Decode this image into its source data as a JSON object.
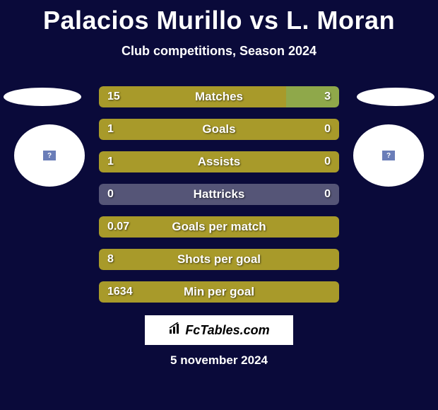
{
  "title": "Palacios Murillo vs L. Moran",
  "subtitle": "Club competitions, Season 2024",
  "date": "5 november 2024",
  "logo_text": "FcTables.com",
  "badge_left_color": "#6a7db8",
  "badge_right_color": "#6a7db8",
  "colors": {
    "background": "#0a0a3a",
    "bar_primary": "#a89a2a",
    "bar_secondary": "#8fa84a",
    "text": "#ffffff"
  },
  "stats": [
    {
      "label": "Matches",
      "left_val": "15",
      "right_val": "3",
      "left_w": 78,
      "right_w": 22,
      "left_color": "#a89a2a",
      "right_color": "#8fa84a"
    },
    {
      "label": "Goals",
      "left_val": "1",
      "right_val": "0",
      "left_w": 100,
      "right_w": 0,
      "left_color": "#a89a2a",
      "right_color": "#8fa84a"
    },
    {
      "label": "Assists",
      "left_val": "1",
      "right_val": "0",
      "left_w": 100,
      "right_w": 0,
      "left_color": "#a89a2a",
      "right_color": "#8fa84a"
    },
    {
      "label": "Hattricks",
      "left_val": "0",
      "right_val": "0",
      "left_w": 0,
      "right_w": 0,
      "left_color": "#a89a2a",
      "right_color": "#8fa84a",
      "neutral": true,
      "neutral_color": "#555577"
    },
    {
      "label": "Goals per match",
      "left_val": "0.07",
      "right_val": "",
      "left_w": 100,
      "right_w": 0,
      "left_color": "#a89a2a",
      "right_color": "#8fa84a"
    },
    {
      "label": "Shots per goal",
      "left_val": "8",
      "right_val": "",
      "left_w": 100,
      "right_w": 0,
      "left_color": "#a89a2a",
      "right_color": "#8fa84a"
    },
    {
      "label": "Min per goal",
      "left_val": "1634",
      "right_val": "",
      "left_w": 100,
      "right_w": 0,
      "left_color": "#a89a2a",
      "right_color": "#8fa84a"
    }
  ]
}
